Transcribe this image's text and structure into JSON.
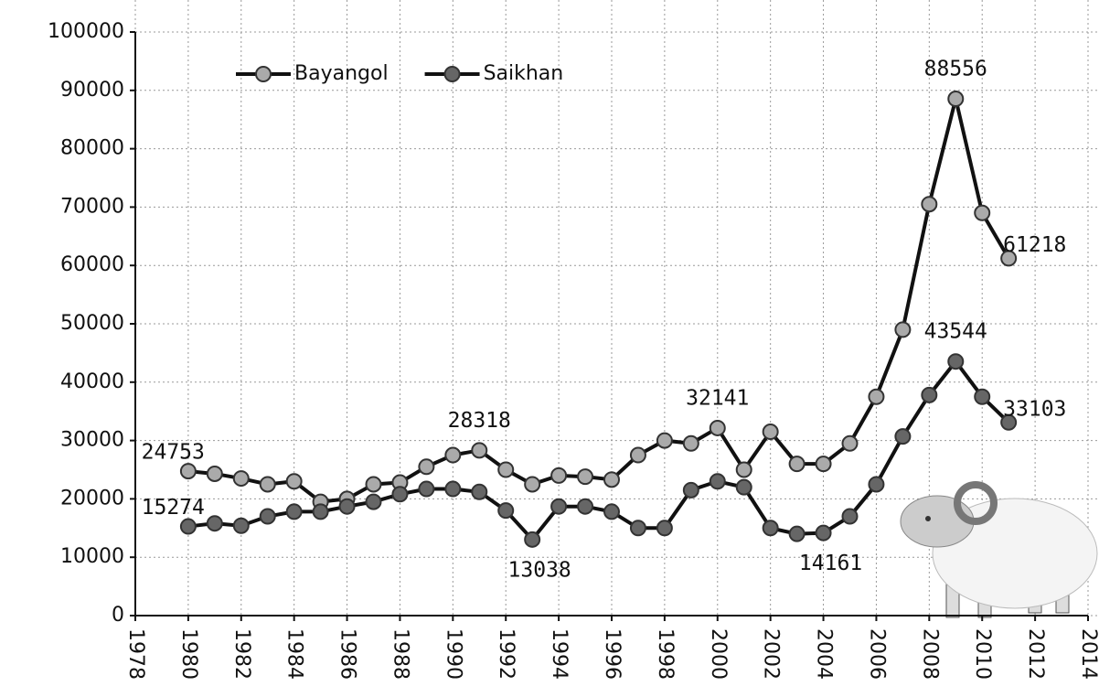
{
  "chart_data": {
    "type": "line",
    "x": [
      1980,
      1981,
      1982,
      1983,
      1984,
      1985,
      1986,
      1987,
      1988,
      1989,
      1990,
      1991,
      1992,
      1993,
      1994,
      1995,
      1996,
      1997,
      1998,
      1999,
      2000,
      2001,
      2002,
      2003,
      2004,
      2005,
      2006,
      2007,
      2008,
      2009,
      2010,
      2011
    ],
    "series": [
      {
        "name": "Bayangol",
        "color": "#aaaaaa",
        "line_color": "#111111",
        "values": [
          24753,
          24300,
          23500,
          22500,
          23000,
          19500,
          20000,
          22500,
          22800,
          25500,
          27500,
          28318,
          25000,
          22500,
          24000,
          23800,
          23300,
          27500,
          30000,
          29500,
          32141,
          25000,
          31500,
          26000,
          26000,
          29500,
          37500,
          49000,
          70500,
          88556,
          69000,
          61218
        ],
        "labeled_indices": [
          0,
          11,
          20,
          29,
          31
        ]
      },
      {
        "name": "Saikhan",
        "color": "#666666",
        "line_color": "#111111",
        "values": [
          15274,
          15800,
          15400,
          17000,
          17800,
          17800,
          18700,
          19500,
          20800,
          21700,
          21700,
          21200,
          18000,
          13038,
          18700,
          18700,
          17800,
          15000,
          15000,
          21500,
          23000,
          22000,
          15000,
          14000,
          14161,
          17000,
          22500,
          30700,
          37800,
          43544,
          37500,
          33103
        ],
        "labeled_indices": [
          0,
          13,
          24,
          29,
          31
        ]
      }
    ],
    "xlim": [
      1978,
      2014
    ],
    "xticks": [
      1978,
      1980,
      1982,
      1984,
      1986,
      1988,
      1990,
      1992,
      1994,
      1996,
      1998,
      2000,
      2002,
      2004,
      2006,
      2008,
      2010,
      2012,
      2014
    ],
    "ylim": [
      0,
      100000
    ],
    "yticks": [
      0,
      10000,
      20000,
      30000,
      40000,
      50000,
      60000,
      70000,
      80000,
      90000,
      100000
    ],
    "grid": true,
    "legend": "top-left"
  }
}
